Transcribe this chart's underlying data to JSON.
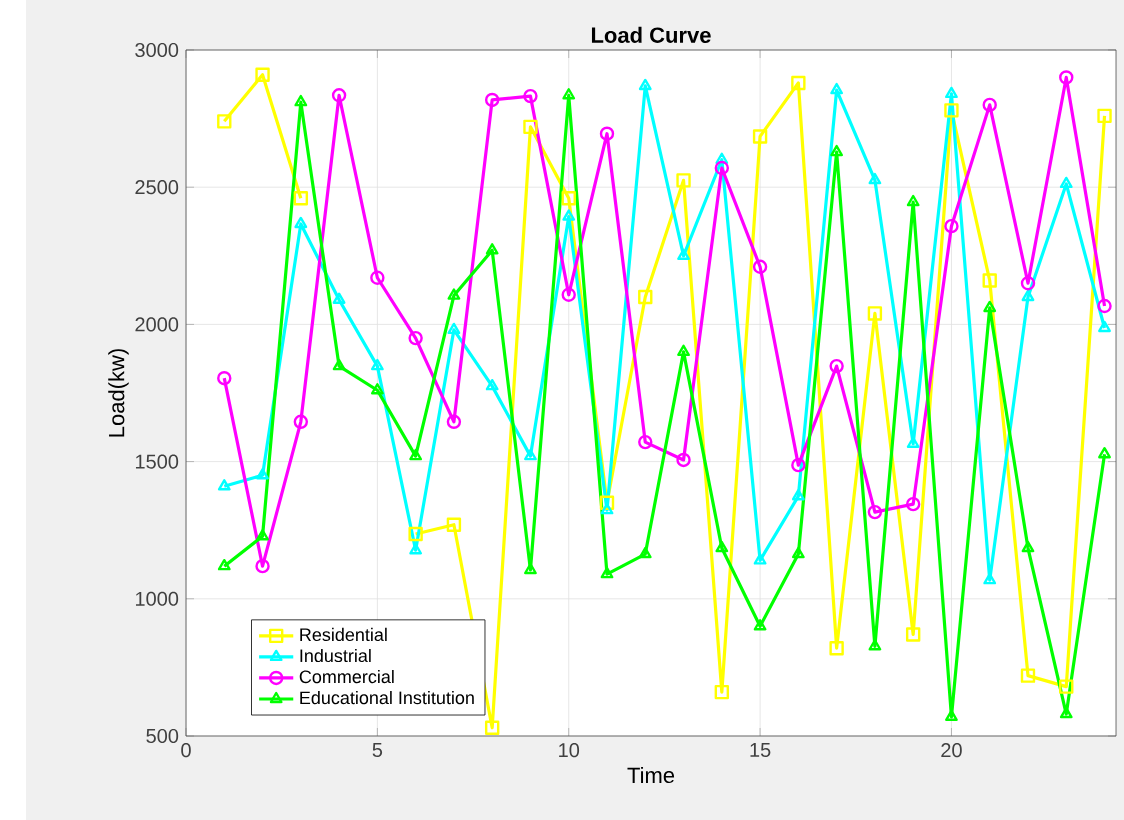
{
  "chart_data": {
    "type": "line",
    "title": "Load Curve",
    "xlabel": "Time",
    "ylabel": "Load(kw)",
    "x": [
      1,
      2,
      3,
      4,
      5,
      6,
      7,
      8,
      9,
      10,
      11,
      12,
      13,
      14,
      15,
      16,
      17,
      18,
      19,
      20,
      21,
      22,
      23,
      24
    ],
    "series": [
      {
        "name": "Residential",
        "color": "#ffff00",
        "marker": "square",
        "values": [
          2740,
          2910,
          2460,
          null,
          null,
          1236,
          1270,
          530,
          2720,
          2460,
          1350,
          2100,
          2525,
          660,
          2685,
          2880,
          820,
          2040,
          870,
          2780,
          2160,
          720,
          680,
          2760
        ]
      },
      {
        "name": "Industrial",
        "color": "#00ffff",
        "marker": "triangle",
        "values": [
          1410,
          1450,
          2366,
          2090,
          1848,
          1177,
          1980,
          1775,
          1520,
          2393,
          1323,
          2869,
          2250,
          2600,
          1140,
          1374,
          2854,
          2526,
          1565,
          2840,
          1068,
          2100,
          2512,
          1987
        ]
      },
      {
        "name": "Commercial",
        "color": "#ff00ff",
        "marker": "circle",
        "values": [
          1804,
          1119,
          1645,
          2835,
          2170,
          1950,
          1645,
          2818,
          2832,
          2108,
          2695,
          1571,
          1506,
          2570,
          2210,
          1487,
          1848,
          1316,
          1345,
          2358,
          2800,
          2150,
          2900,
          2067
        ]
      },
      {
        "name": "Educational Institution",
        "color": "#00ff00",
        "marker": "triangle",
        "values": [
          1119,
          1228,
          2810,
          1848,
          1760,
          1520,
          2105,
          2270,
          1105,
          2835,
          1090,
          1163,
          1900,
          1185,
          900,
          1163,
          2628,
          827,
          2446,
          570,
          2060,
          1185,
          580,
          1527
        ]
      }
    ],
    "xlim": [
      0,
      24.3
    ],
    "ylim": [
      500,
      3000
    ],
    "xticks": [
      0,
      5,
      10,
      15,
      20
    ],
    "yticks": [
      500,
      1000,
      1500,
      2000,
      2500,
      3000
    ],
    "grid": true,
    "legend": "bottom left",
    "line_style": "solid"
  }
}
